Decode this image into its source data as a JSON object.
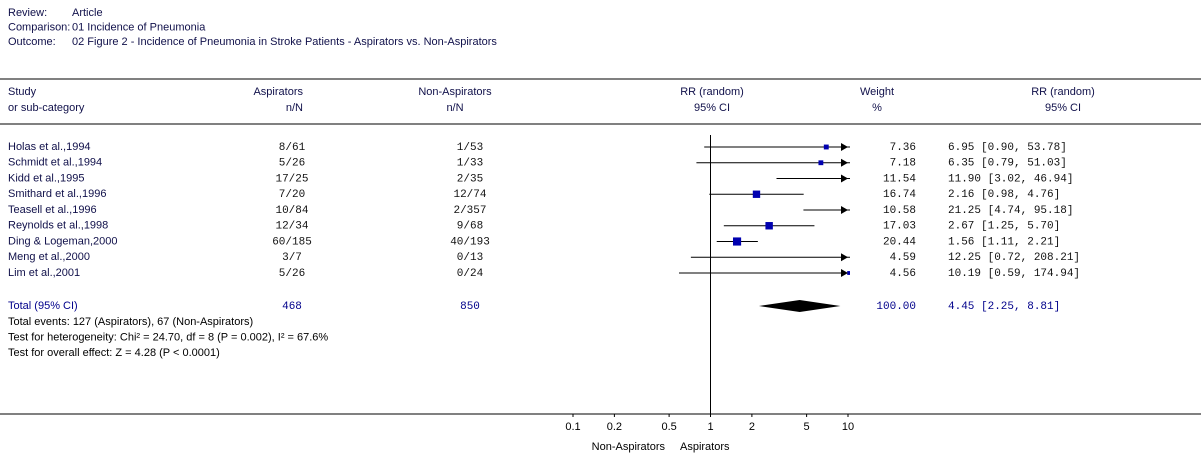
{
  "chart_data": {
    "type": "forest",
    "header": [
      {
        "label": "Review:",
        "value": "Article"
      },
      {
        "label": "Comparison:",
        "value": "01 Incidence of Pneumonia"
      },
      {
        "label": "Outcome:",
        "value": "02 Figure 2 - Incidence of Pneumonia in Stroke Patients - Aspirators vs. Non-Aspirators"
      }
    ],
    "columns": [
      {
        "title": "Study",
        "subtitle": "or sub-category"
      },
      {
        "title": "Aspirators",
        "subtitle": "n/N"
      },
      {
        "title": "Non-Aspirators",
        "subtitle": "n/N"
      },
      {
        "title": "RR (random)",
        "subtitle": "95% CI"
      },
      {
        "title": "Weight",
        "subtitle": "%"
      },
      {
        "title": "RR (random)",
        "subtitle": "95% CI"
      }
    ],
    "studies": [
      {
        "name": "Holas et al.,1994",
        "aspirators": "8/61",
        "non_aspirators": "1/53",
        "weight": 7.36,
        "estimate": 6.95,
        "ci_low": 0.9,
        "ci_high": 53.78,
        "ci_label": "6.95 [0.90, 53.78]"
      },
      {
        "name": "Schmidt et al.,1994",
        "aspirators": "5/26",
        "non_aspirators": "1/33",
        "weight": 7.18,
        "estimate": 6.35,
        "ci_low": 0.79,
        "ci_high": 51.03,
        "ci_label": "6.35 [0.79, 51.03]"
      },
      {
        "name": "Kidd et al.,1995",
        "aspirators": "17/25",
        "non_aspirators": "2/35",
        "weight": 11.54,
        "estimate": 11.9,
        "ci_low": 3.02,
        "ci_high": 46.94,
        "ci_label": "11.90 [3.02, 46.94]"
      },
      {
        "name": "Smithard et al.,1996",
        "aspirators": "7/20",
        "non_aspirators": "12/74",
        "weight": 16.74,
        "estimate": 2.16,
        "ci_low": 0.98,
        "ci_high": 4.76,
        "ci_label": "2.16 [0.98, 4.76]"
      },
      {
        "name": "Teasell et al.,1996",
        "aspirators": "10/84",
        "non_aspirators": "2/357",
        "weight": 10.58,
        "estimate": 21.25,
        "ci_low": 4.74,
        "ci_high": 95.18,
        "ci_label": "21.25 [4.74, 95.18]"
      },
      {
        "name": "Reynolds et al.,1998",
        "aspirators": "12/34",
        "non_aspirators": "9/68",
        "weight": 17.03,
        "estimate": 2.67,
        "ci_low": 1.25,
        "ci_high": 5.7,
        "ci_label": "2.67 [1.25, 5.70]"
      },
      {
        "name": "Ding & Logeman,2000",
        "aspirators": "60/185",
        "non_aspirators": "40/193",
        "weight": 20.44,
        "estimate": 1.56,
        "ci_low": 1.11,
        "ci_high": 2.21,
        "ci_label": "1.56 [1.11, 2.21]"
      },
      {
        "name": "Meng et al.,2000",
        "aspirators": "3/7",
        "non_aspirators": "0/13",
        "weight": 4.59,
        "estimate": 12.25,
        "ci_low": 0.72,
        "ci_high": 208.21,
        "ci_label": "12.25 [0.72, 208.21]"
      },
      {
        "name": "Lim et al.,2001",
        "aspirators": "5/26",
        "non_aspirators": "0/24",
        "weight": 4.56,
        "estimate": 10.19,
        "ci_low": 0.59,
        "ci_high": 174.94,
        "ci_label": "10.19 [0.59, 174.94]"
      }
    ],
    "total": {
      "name": "Total (95% CI)",
      "aspirators": 468,
      "non_aspirators": 850,
      "weight": {
        "value": 100,
        "label": "100.00"
      },
      "estimate": 4.45,
      "ci_low": 2.25,
      "ci_high": 8.81,
      "ci_label": "4.45 [2.25, 8.81]"
    },
    "footnotes": [
      "Total events: 127 (Aspirators), 67 (Non-Aspirators)",
      "Test for heterogeneity: Chi² = 24.70, df = 8 (P = 0.002), I² = 67.6%",
      "Test for overall effect: Z = 4.28 (P < 0.0001)"
    ],
    "xscale": "log",
    "xlim": [
      0.1,
      10
    ],
    "xticks": [
      0.1,
      0.2,
      0.5,
      1,
      2,
      5,
      10
    ],
    "reference_line": 1,
    "axis_labels": {
      "left": "Non-Aspirators",
      "right": "Aspirators"
    },
    "marker_color": "#0000b0",
    "total_color": "#00008b",
    "diamond_color": "#000000"
  }
}
